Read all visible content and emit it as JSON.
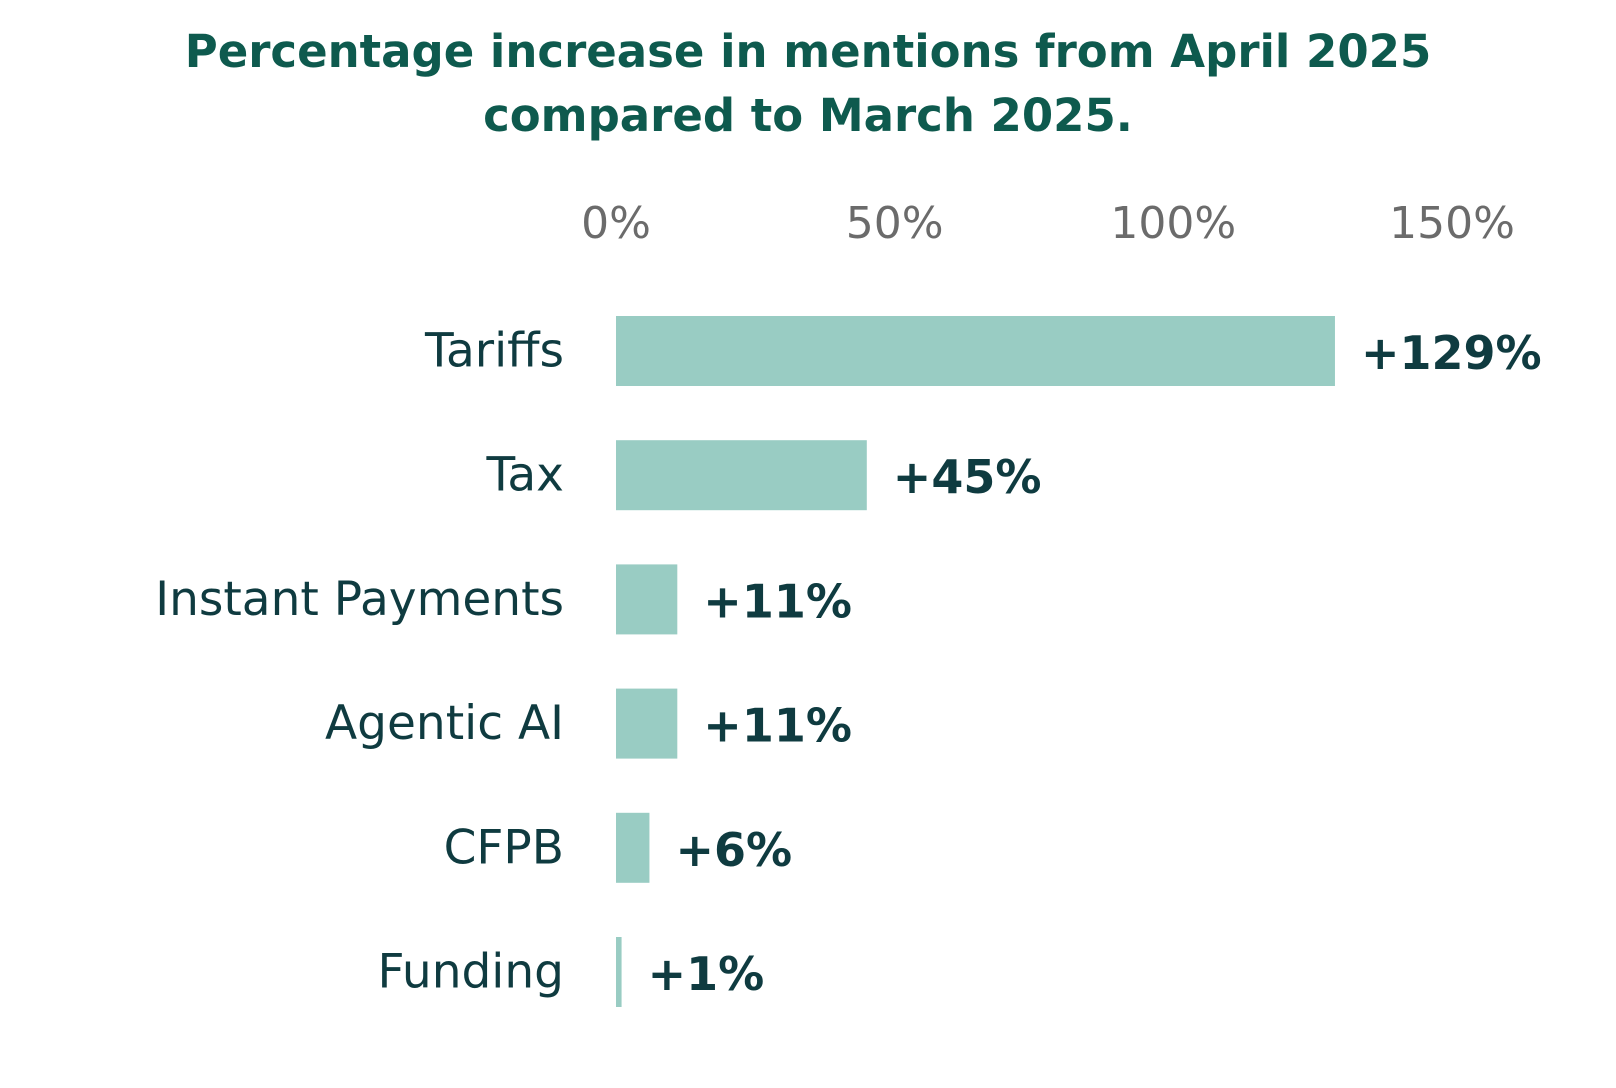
{
  "colors": {
    "title": "#0e5a4e",
    "tick": "#6b6b6b",
    "category": "#0f3b40",
    "value": "#0f3b40",
    "bar": "#99ccc3",
    "background": "#ffffff"
  },
  "chart_data": {
    "type": "bar",
    "orientation": "horizontal",
    "title": "Percentage increase in mentions from April  2025 compared to March 2025.",
    "title_lines": [
      "Percentage increase in mentions from April  2025",
      "compared to March 2025."
    ],
    "categories": [
      "Tariffs",
      "Tax",
      "Instant Payments",
      "Agentic AI",
      "CFPB",
      "Funding"
    ],
    "values": [
      129,
      45,
      11,
      11,
      6,
      1
    ],
    "value_labels": [
      "+129%",
      "+45%",
      "+11%",
      "+11%",
      "+6%",
      "+1%"
    ],
    "unit": "%",
    "xlim": [
      0,
      150
    ],
    "xticks": [
      0,
      50,
      100,
      150
    ],
    "xtick_labels": [
      "0%",
      "50%",
      "100%",
      "150%"
    ],
    "x_axis_position": "top",
    "grid": false,
    "legend": "none",
    "xlabel": "",
    "ylabel": ""
  }
}
